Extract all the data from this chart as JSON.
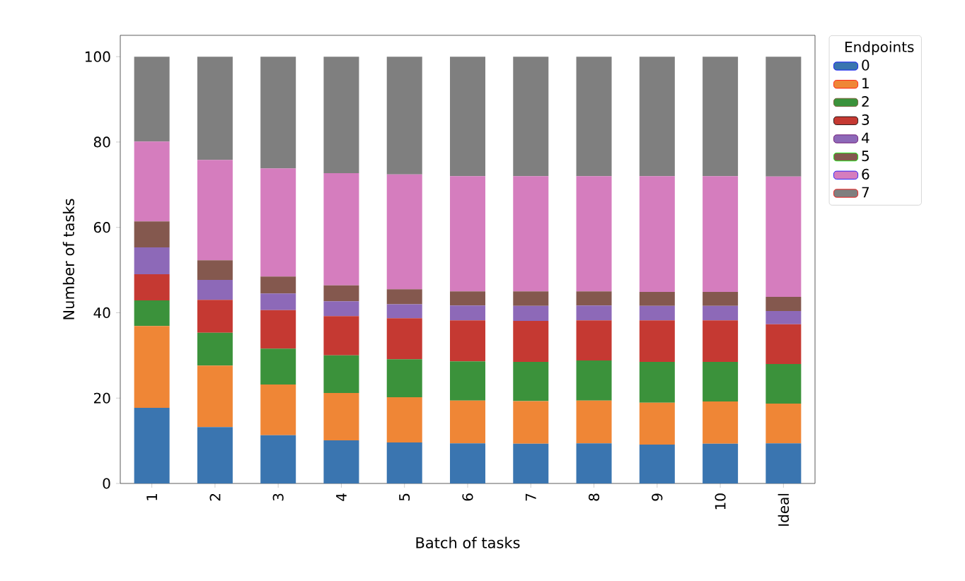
{
  "chart_data": {
    "type": "bar",
    "stacked": true,
    "xlabel": "Batch of tasks",
    "ylabel": "Number of tasks",
    "legend_title": "Endpoints",
    "legend": "top right",
    "categories": [
      "1",
      "2",
      "3",
      "4",
      "5",
      "6",
      "7",
      "8",
      "9",
      "10",
      "Ideal"
    ],
    "ylim": [
      0,
      105
    ],
    "yticks": [
      0,
      20,
      40,
      60,
      80,
      100
    ],
    "series": [
      {
        "name": "0",
        "color": "#3a75b0",
        "values": [
          17.7,
          13.2,
          11.3,
          10.1,
          9.6,
          9.4,
          9.3,
          9.4,
          9.1,
          9.3,
          9.4
        ]
      },
      {
        "name": "1",
        "color": "#ef8636",
        "values": [
          19.2,
          14.4,
          11.9,
          11.1,
          10.6,
          10.0,
          10.0,
          10.0,
          9.8,
          9.9,
          9.3
        ]
      },
      {
        "name": "2",
        "color": "#3b923b",
        "values": [
          6.0,
          7.7,
          8.4,
          8.8,
          8.9,
          9.2,
          9.2,
          9.4,
          9.6,
          9.3,
          9.3
        ]
      },
      {
        "name": "3",
        "color": "#c53932",
        "values": [
          6.1,
          7.7,
          9.0,
          9.2,
          9.6,
          9.6,
          9.6,
          9.4,
          9.7,
          9.7,
          9.3
        ]
      },
      {
        "name": "4",
        "color": "#8d69b8",
        "values": [
          6.3,
          4.7,
          3.9,
          3.5,
          3.3,
          3.5,
          3.5,
          3.5,
          3.4,
          3.4,
          3.1
        ]
      },
      {
        "name": "5",
        "color": "#84584e",
        "values": [
          6.1,
          4.6,
          4.0,
          3.7,
          3.5,
          3.3,
          3.4,
          3.3,
          3.3,
          3.3,
          3.3
        ]
      },
      {
        "name": "6",
        "color": "#d57dbe",
        "values": [
          18.7,
          23.5,
          25.3,
          26.3,
          26.9,
          27.0,
          27.0,
          27.0,
          27.1,
          27.1,
          28.2
        ]
      },
      {
        "name": "7",
        "color": "#7f7f7f",
        "values": [
          19.9,
          24.2,
          26.2,
          27.3,
          27.6,
          28.0,
          28.0,
          28.0,
          28.0,
          28.0,
          28.1
        ]
      }
    ]
  }
}
